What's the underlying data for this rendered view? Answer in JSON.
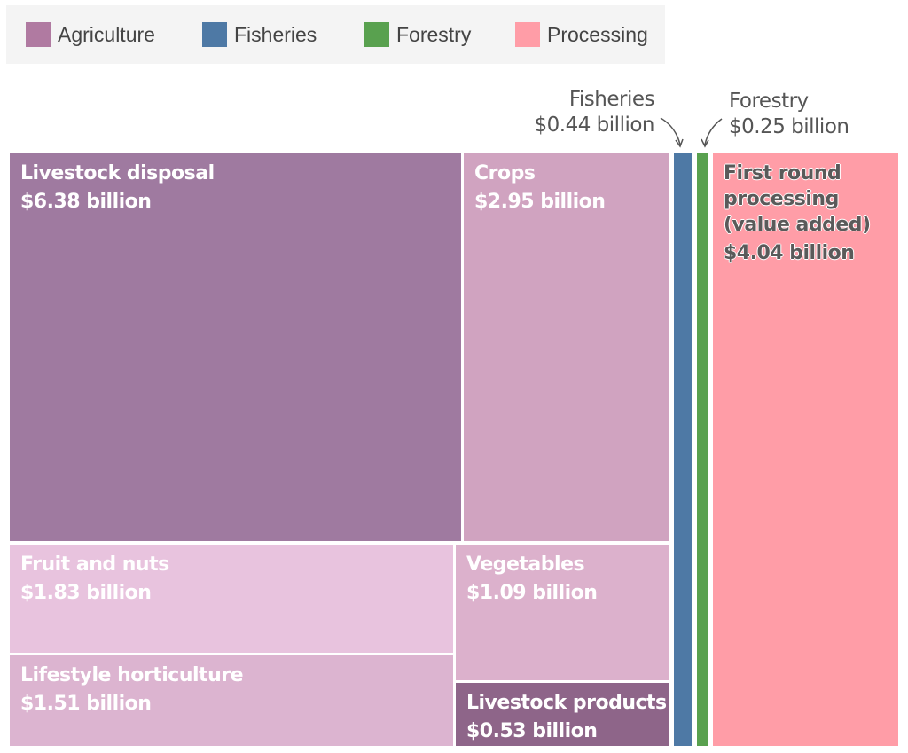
{
  "chart_data": {
    "type": "treemap",
    "legend": [
      {
        "name": "Agriculture",
        "color": "#b07aa1"
      },
      {
        "name": "Fisheries",
        "color": "#4e79a5"
      },
      {
        "name": "Forestry",
        "color": "#59a14f"
      },
      {
        "name": "Processing",
        "color": "#ff9da7"
      }
    ],
    "legend_position": "top-left",
    "unit": "billion",
    "nodes": [
      {
        "group": "Agriculture",
        "label": "Livestock disposal",
        "value": 6.38,
        "value_text": "$6.38 billion",
        "color": "#9f7aa0"
      },
      {
        "group": "Agriculture",
        "label": "Crops",
        "value": 2.95,
        "value_text": "$2.95 billion",
        "color": "#d0a3c0"
      },
      {
        "group": "Agriculture",
        "label": "Fruit and nuts",
        "value": 1.83,
        "value_text": "$1.83 billion",
        "color": "#e8c3de"
      },
      {
        "group": "Agriculture",
        "label": "Lifestyle horticulture",
        "value": 1.51,
        "value_text": "$1.51 billion",
        "color": "#dcb4d0"
      },
      {
        "group": "Agriculture",
        "label": "Vegetables",
        "value": 1.09,
        "value_text": "$1.09 billion",
        "color": "#dcb1cc"
      },
      {
        "group": "Agriculture",
        "label": "Livestock products",
        "value": 0.53,
        "value_text": "$0.53 billion",
        "color": "#8e6589"
      },
      {
        "group": "Fisheries",
        "label": "Fisheries",
        "value": 0.44,
        "value_text": "$0.44 billion",
        "color": "#4e79a5"
      },
      {
        "group": "Forestry",
        "label": "Forestry",
        "value": 0.25,
        "value_text": "$0.25 billion",
        "color": "#59a14f"
      },
      {
        "group": "Processing",
        "label": "First round processing (value added)",
        "value": 4.04,
        "value_text": "$4.04 billion",
        "color": "#ff9da7"
      }
    ]
  }
}
